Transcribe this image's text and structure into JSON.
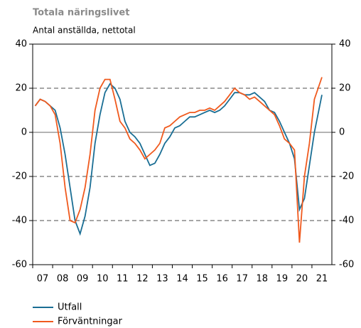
{
  "chart_data": {
    "type": "line",
    "title": "Totala näringslivet",
    "subtitle": "Antal anställda, nettotal",
    "x": [
      2007.125,
      2007.375,
      2007.625,
      2007.875,
      2008.125,
      2008.375,
      2008.625,
      2008.875,
      2009.125,
      2009.375,
      2009.625,
      2009.875,
      2010.125,
      2010.375,
      2010.625,
      2010.875,
      2011.125,
      2011.375,
      2011.625,
      2011.875,
      2012.125,
      2012.375,
      2012.625,
      2012.875,
      2013.125,
      2013.375,
      2013.625,
      2013.875,
      2014.125,
      2014.375,
      2014.625,
      2014.875,
      2015.125,
      2015.375,
      2015.625,
      2015.875,
      2016.125,
      2016.375,
      2016.625,
      2016.875,
      2017.125,
      2017.375,
      2017.625,
      2017.875,
      2018.125,
      2018.375,
      2018.625,
      2018.875,
      2019.125,
      2019.375,
      2019.625,
      2019.875,
      2020.125,
      2020.375,
      2020.625,
      2020.875,
      2021.125,
      2021.5
    ],
    "series": [
      {
        "name": "Utfall",
        "color": "#1a6e94",
        "values": [
          12,
          15,
          14,
          12,
          10,
          2,
          -10,
          -25,
          -40,
          -46,
          -38,
          -25,
          -5,
          8,
          18,
          22,
          20,
          15,
          5,
          0,
          -2,
          -5,
          -10,
          -15,
          -14,
          -10,
          -5,
          -2,
          2,
          3,
          5,
          7,
          7,
          8,
          9,
          10,
          9,
          10,
          12,
          15,
          18,
          18,
          17,
          17,
          18,
          16,
          14,
          10,
          9,
          5,
          0,
          -5,
          -12,
          -35,
          -30,
          -15,
          0,
          17
        ]
      },
      {
        "name": "Förväntningar",
        "color": "#f05a1e",
        "values": [
          12,
          15,
          14,
          12,
          8,
          -5,
          -25,
          -40,
          -41,
          -35,
          -25,
          -10,
          10,
          20,
          24,
          24,
          15,
          5,
          2,
          -3,
          -5,
          -8,
          -12,
          -10,
          -8,
          -5,
          2,
          3,
          5,
          7,
          8,
          9,
          9,
          10,
          10,
          11,
          10,
          12,
          14,
          17,
          20,
          18,
          17,
          15,
          16,
          14,
          12,
          10,
          8,
          3,
          -3,
          -5,
          -8,
          -50,
          -20,
          -5,
          15,
          25
        ]
      }
    ],
    "xlim": [
      2007,
      2022
    ],
    "xticks": [
      {
        "value": 2007,
        "label": "07"
      },
      {
        "value": 2008,
        "label": "08"
      },
      {
        "value": 2009,
        "label": "09"
      },
      {
        "value": 2010,
        "label": "10"
      },
      {
        "value": 2011,
        "label": "11"
      },
      {
        "value": 2012,
        "label": "12"
      },
      {
        "value": 2013,
        "label": "13"
      },
      {
        "value": 2014,
        "label": "14"
      },
      {
        "value": 2015,
        "label": "15"
      },
      {
        "value": 2016,
        "label": "16"
      },
      {
        "value": 2017,
        "label": "17"
      },
      {
        "value": 2018,
        "label": "18"
      },
      {
        "value": 2019,
        "label": "19"
      },
      {
        "value": 2020,
        "label": "20"
      },
      {
        "value": 2021,
        "label": "21"
      }
    ],
    "ylim": [
      -60,
      40
    ],
    "yticks": [
      -60,
      -40,
      -20,
      0,
      20,
      40
    ],
    "grid": true
  }
}
